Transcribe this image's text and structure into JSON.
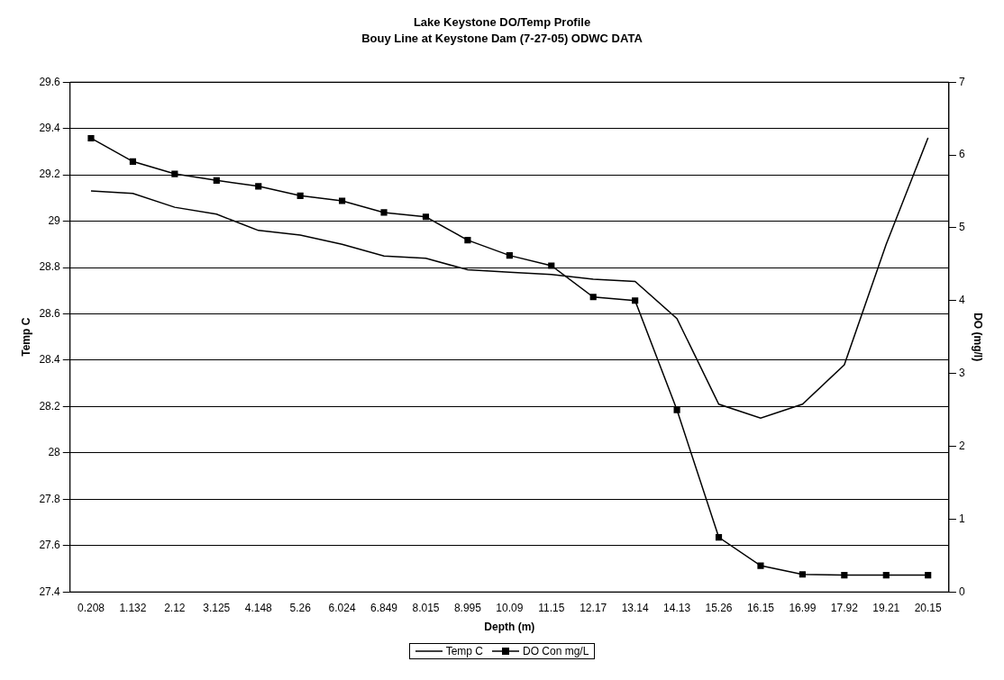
{
  "chart_data": {
    "type": "line",
    "title": "Lake Keystone DO/Temp Profile",
    "subtitle": "Bouy Line at Keystone Dam (7-27-05) ODWC DATA",
    "xlabel": "Depth (m)",
    "ylabel": "Temp C",
    "y2label": "DO (mg/l)",
    "categories": [
      "0.208",
      "1.132",
      "2.12",
      "3.125",
      "4.148",
      "5.26",
      "6.024",
      "6.849",
      "8.015",
      "8.995",
      "10.09",
      "11.15",
      "12.17",
      "13.14",
      "14.13",
      "15.26",
      "16.15",
      "16.99",
      "17.92",
      "19.21",
      "20.15"
    ],
    "series": [
      {
        "name": "Temp C",
        "color": "#000000",
        "marker": "none",
        "values": [
          29.13,
          29.12,
          29.06,
          29.03,
          28.96,
          28.94,
          28.9,
          28.85,
          28.84,
          28.79,
          28.78,
          28.77,
          28.75,
          28.74,
          28.58,
          28.21,
          28.15,
          28.21,
          28.38,
          28.9,
          29.36
        ]
      },
      {
        "name": "DO Con mg/L",
        "color": "#000000",
        "marker": "square",
        "axis": "y2",
        "values": [
          6.23,
          5.91,
          5.74,
          5.65,
          5.57,
          5.44,
          5.37,
          5.21,
          5.15,
          4.83,
          4.62,
          4.48,
          4.05,
          4.0,
          2.5,
          0.75,
          0.36,
          0.24,
          0.23,
          0.23,
          0.23
        ]
      }
    ],
    "ylim": [
      27.4,
      29.6
    ],
    "yticks": [
      27.4,
      27.6,
      27.8,
      28,
      28.2,
      28.4,
      28.6,
      28.8,
      29,
      29.2,
      29.4,
      29.6
    ],
    "y2lim": [
      0,
      7
    ],
    "y2ticks": [
      0,
      1,
      2,
      3,
      4,
      5,
      6,
      7
    ],
    "grid": "y",
    "legend": "bottom"
  }
}
